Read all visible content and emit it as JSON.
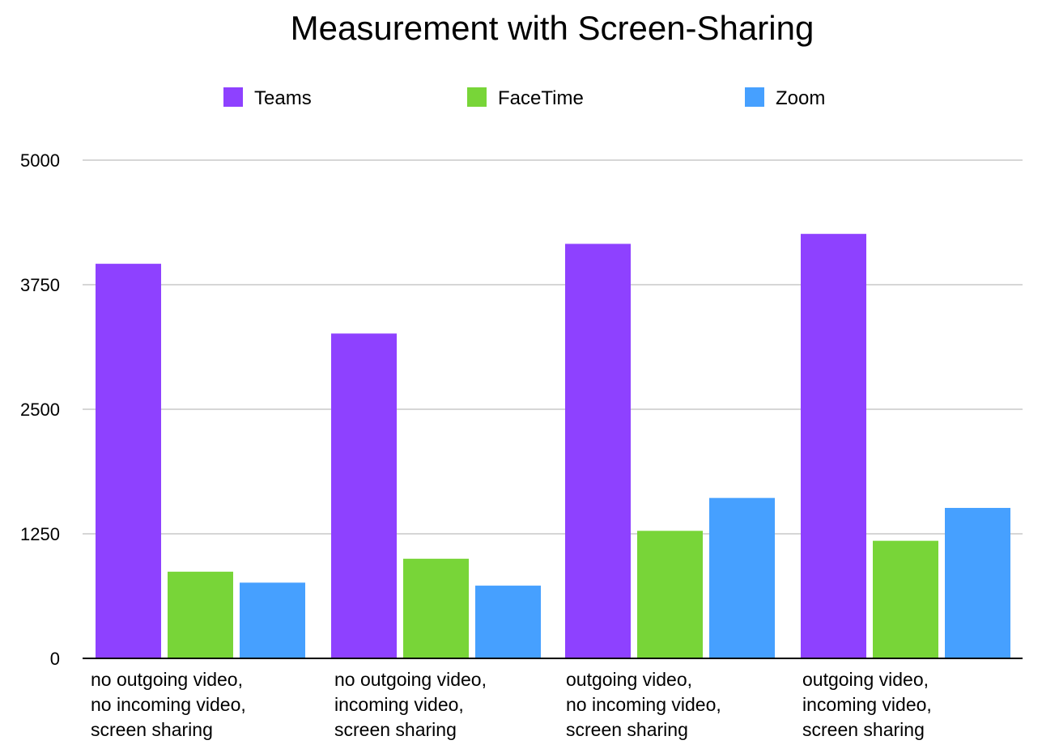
{
  "chart_data": {
    "type": "bar",
    "title": "Measurement with Screen-Sharing",
    "xlabel": "",
    "ylabel": "",
    "ylim": [
      0,
      5000
    ],
    "yticks": [
      "0",
      "1250",
      "2500",
      "3750",
      "5000"
    ],
    "grid": true,
    "legend_position": "top-center",
    "categories": [
      [
        "no outgoing video,",
        "no incoming video,",
        "screen sharing"
      ],
      [
        "no outgoing video,",
        "incoming video,",
        "screen sharing"
      ],
      [
        "outgoing video,",
        "no incoming video,",
        "screen sharing"
      ],
      [
        "outgoing video,",
        "incoming video,",
        "screen sharing"
      ]
    ],
    "series": [
      {
        "name": "Teams",
        "color": "#8e41ff",
        "values": [
          3960,
          3260,
          4160,
          4260
        ]
      },
      {
        "name": "FaceTime",
        "color": "#78d538",
        "values": [
          870,
          1000,
          1280,
          1180
        ]
      },
      {
        "name": "Zoom",
        "color": "#46a0ff",
        "values": [
          760,
          730,
          1610,
          1510
        ]
      }
    ]
  }
}
